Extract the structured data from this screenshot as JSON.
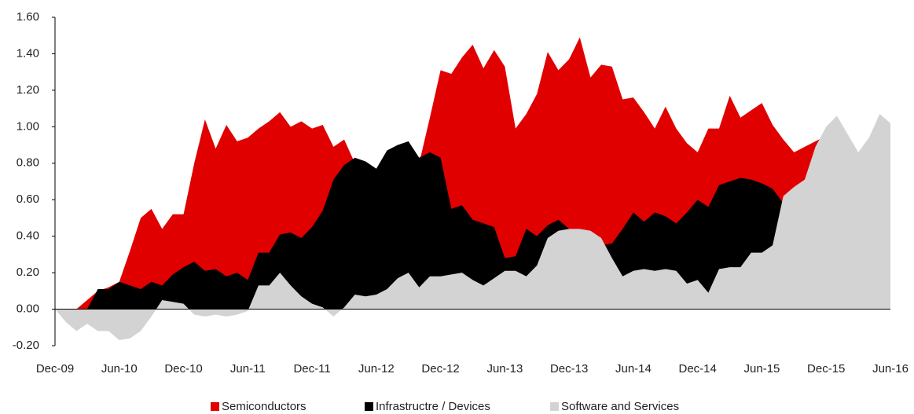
{
  "chart_data": {
    "type": "area",
    "categories": [
      "Dec-09",
      null,
      null,
      null,
      null,
      null,
      "Jun-10",
      null,
      null,
      null,
      null,
      null,
      "Dec-10",
      null,
      null,
      null,
      null,
      null,
      "Jun-11",
      null,
      null,
      null,
      null,
      null,
      "Dec-11",
      null,
      null,
      null,
      null,
      null,
      "Jun-12",
      null,
      null,
      null,
      null,
      null,
      "Dec-12",
      null,
      null,
      null,
      null,
      null,
      "Jun-13",
      null,
      null,
      null,
      null,
      null,
      "Dec-13",
      null,
      null,
      null,
      null,
      null,
      "Jun-14",
      null,
      null,
      null,
      null,
      null,
      "Dec-14",
      null,
      null,
      null,
      null,
      null,
      "Jun-15",
      null,
      null,
      null,
      null,
      null,
      "Dec-15",
      null,
      null,
      null,
      null,
      null,
      "Jun-16"
    ],
    "series": [
      {
        "name": "Semiconductors",
        "color": "#e00000",
        "values": [
          0,
          0,
          0,
          0.05,
          0.1,
          0.12,
          0.15,
          0.32,
          0.5,
          0.55,
          0.44,
          0.52,
          0.52,
          0.8,
          1.04,
          0.88,
          1.01,
          0.92,
          0.94,
          0.99,
          1.03,
          1.08,
          1.0,
          1.03,
          0.99,
          1.01,
          0.89,
          0.93,
          0.8,
          0.75,
          0.7,
          0.65,
          0.7,
          0.75,
          0.8,
          1.05,
          1.31,
          1.29,
          1.38,
          1.45,
          1.32,
          1.42,
          1.33,
          0.99,
          1.07,
          1.18,
          1.41,
          1.31,
          1.37,
          1.49,
          1.27,
          1.34,
          1.33,
          1.15,
          1.16,
          1.08,
          0.99,
          1.11,
          0.99,
          0.91,
          0.86,
          0.99,
          0.99,
          1.17,
          1.05,
          1.09,
          1.13,
          1.01,
          0.93,
          0.86,
          0.89,
          0.92,
          0.95,
          0.9,
          0.85,
          0.8,
          0.8,
          0.8,
          0.42
        ]
      },
      {
        "name": "Infrastructre / Devices",
        "color": "#000000",
        "values": [
          0,
          0,
          0,
          0,
          0.11,
          0.11,
          0.15,
          0.13,
          0.11,
          0.15,
          0.13,
          0.19,
          0.23,
          0.26,
          0.21,
          0.22,
          0.18,
          0.2,
          0.16,
          0.31,
          0.31,
          0.41,
          0.42,
          0.39,
          0.45,
          0.54,
          0.71,
          0.79,
          0.83,
          0.81,
          0.77,
          0.87,
          0.9,
          0.92,
          0.83,
          0.86,
          0.83,
          0.55,
          0.57,
          0.49,
          0.47,
          0.45,
          0.28,
          0.29,
          0.44,
          0.4,
          0.46,
          0.49,
          0.44,
          0.43,
          0.42,
          0.35,
          0.36,
          0.44,
          0.53,
          0.48,
          0.53,
          0.51,
          0.47,
          0.53,
          0.6,
          0.56,
          0.68,
          0.7,
          0.72,
          0.71,
          0.69,
          0.66,
          0.58,
          0.5,
          0.5,
          0.5,
          0.5,
          0.5,
          0.5,
          0.5,
          0.45,
          0.42,
          0.4
        ]
      },
      {
        "name": "Software and Services",
        "color": "#d3d3d3",
        "values": [
          0,
          -0.07,
          -0.12,
          -0.08,
          -0.12,
          -0.12,
          -0.17,
          -0.16,
          -0.12,
          -0.04,
          0.05,
          0.04,
          0.03,
          -0.03,
          -0.04,
          -0.03,
          -0.04,
          -0.03,
          -0.01,
          0.13,
          0.13,
          0.2,
          0.13,
          0.07,
          0.03,
          0.01,
          -0.04,
          0.01,
          0.08,
          0.07,
          0.08,
          0.11,
          0.17,
          0.2,
          0.12,
          0.18,
          0.18,
          0.19,
          0.2,
          0.16,
          0.13,
          0.17,
          0.21,
          0.21,
          0.18,
          0.24,
          0.39,
          0.43,
          0.44,
          0.44,
          0.43,
          0.39,
          0.28,
          0.18,
          0.21,
          0.22,
          0.21,
          0.22,
          0.21,
          0.14,
          0.16,
          0.09,
          0.22,
          0.23,
          0.23,
          0.31,
          0.31,
          0.35,
          0.62,
          0.67,
          0.71,
          0.89,
          1.0,
          1.06,
          0.96,
          0.86,
          0.94,
          1.07,
          1.02
        ]
      }
    ],
    "ylim": [
      -0.2,
      1.6
    ],
    "yticks": [
      {
        "value": -0.2,
        "label": "-0.20"
      },
      {
        "value": 0,
        "label": "0.00"
      },
      {
        "value": 0.2,
        "label": "0.20"
      },
      {
        "value": 0.4,
        "label": "0.40"
      },
      {
        "value": 0.6,
        "label": "0.60"
      },
      {
        "value": 0.8,
        "label": "0.80"
      },
      {
        "value": 1.0,
        "label": "1.00"
      },
      {
        "value": 1.2,
        "label": "1.20"
      },
      {
        "value": 1.4,
        "label": "1.40"
      },
      {
        "value": 1.6,
        "label": "1.60"
      }
    ],
    "legend": "bottom"
  }
}
